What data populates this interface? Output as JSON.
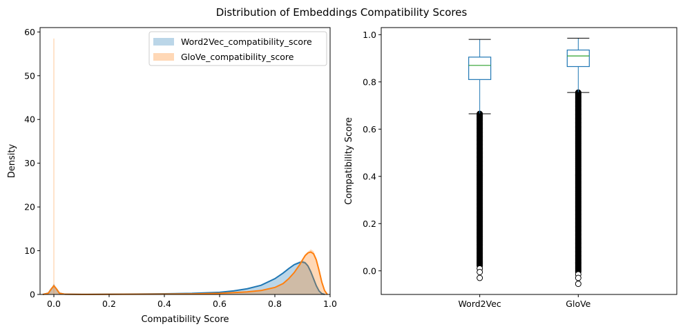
{
  "figure": {
    "title": "Distribution of Embeddings Compatibility Scores"
  },
  "chart_data": [
    {
      "type": "area",
      "subtype": "histogram+kde",
      "xlabel": "Compatibility Score",
      "ylabel": "Density",
      "xlim": [
        -0.05,
        1.0
      ],
      "ylim": [
        0,
        61
      ],
      "xticks": [
        0.0,
        0.2,
        0.4,
        0.6,
        0.8,
        1.0
      ],
      "yticks": [
        0,
        10,
        20,
        30,
        40,
        50,
        60
      ],
      "tick_labels_x": [
        "0.0",
        "0.2",
        "0.4",
        "0.6",
        "0.8",
        "1.0"
      ],
      "tick_labels_y": [
        "0",
        "10",
        "20",
        "30",
        "40",
        "50",
        "60"
      ],
      "legend": {
        "placement": "top-right"
      },
      "series": [
        {
          "name": "Word2Vec_compatibility_score",
          "color": "#1f77b4",
          "x": [
            -0.04,
            -0.02,
            -0.01,
            0.0,
            0.01,
            0.02,
            0.04,
            0.1,
            0.2,
            0.3,
            0.4,
            0.5,
            0.6,
            0.65,
            0.7,
            0.75,
            0.8,
            0.83,
            0.85,
            0.87,
            0.89,
            0.9,
            0.91,
            0.92,
            0.93,
            0.94,
            0.95,
            0.96,
            0.97,
            0.98
          ],
          "kde": [
            0.0,
            0.3,
            1.2,
            2.0,
            1.2,
            0.3,
            0.05,
            0.02,
            0.05,
            0.1,
            0.15,
            0.25,
            0.5,
            0.8,
            1.3,
            2.1,
            3.6,
            4.9,
            5.9,
            6.8,
            7.3,
            7.4,
            7.2,
            6.5,
            5.2,
            3.6,
            2.0,
            0.8,
            0.2,
            0.0
          ],
          "hist": [
            0.0,
            0.0,
            0.0,
            2.5,
            0.0,
            0.0,
            0.0,
            0.0,
            0.0,
            0.1,
            0.15,
            0.25,
            0.5,
            0.8,
            1.3,
            2.2,
            3.7,
            5.0,
            6.0,
            7.0,
            7.6,
            7.8,
            7.5,
            6.8,
            5.4,
            3.6,
            2.0,
            0.7,
            0.1,
            0.0
          ]
        },
        {
          "name": "GloVe_compatibility_score",
          "color": "#ff7f0e",
          "x": [
            -0.04,
            -0.02,
            -0.01,
            0.0,
            0.01,
            0.02,
            0.04,
            0.1,
            0.2,
            0.3,
            0.4,
            0.5,
            0.6,
            0.7,
            0.75,
            0.8,
            0.83,
            0.85,
            0.87,
            0.89,
            0.9,
            0.91,
            0.92,
            0.93,
            0.94,
            0.95,
            0.96,
            0.97,
            0.98,
            0.99
          ],
          "kde": [
            0.0,
            0.3,
            1.2,
            2.0,
            1.2,
            0.3,
            0.05,
            0.02,
            0.03,
            0.05,
            0.08,
            0.12,
            0.25,
            0.6,
            0.9,
            1.6,
            2.5,
            3.6,
            5.0,
            6.8,
            7.9,
            8.9,
            9.5,
            9.7,
            9.3,
            7.9,
            5.5,
            2.8,
            0.9,
            0.0
          ],
          "hist": [
            0.0,
            0.0,
            0.0,
            58.5,
            0.0,
            0.0,
            0.0,
            0.0,
            0.0,
            0.05,
            0.08,
            0.12,
            0.25,
            0.6,
            0.9,
            1.6,
            2.5,
            3.6,
            5.1,
            7.0,
            8.2,
            9.2,
            9.8,
            10.3,
            9.9,
            8.4,
            5.8,
            2.8,
            0.7,
            0.0
          ]
        }
      ]
    },
    {
      "type": "box",
      "xlabel": "",
      "ylabel": "Compatibility Score",
      "ylim": [
        -0.1,
        1.03
      ],
      "yticks": [
        0.0,
        0.2,
        0.4,
        0.6,
        0.8,
        1.0
      ],
      "tick_labels_y": [
        "0.0",
        "0.2",
        "0.4",
        "0.6",
        "0.8",
        "1.0"
      ],
      "categories": [
        "Word2Vec",
        "GloVe"
      ],
      "colors": {
        "box": "#1f77b4",
        "median": "#2ca02c",
        "whisker": "#1f77b4",
        "cap": "#000000",
        "flier": "#000000"
      },
      "boxes": [
        {
          "name": "Word2Vec",
          "whisker_low": 0.665,
          "q1": 0.81,
          "median": 0.87,
          "q3": 0.905,
          "whisker_high": 0.98,
          "outlier_min": -0.03,
          "outlier_max": 0.665
        },
        {
          "name": "GloVe",
          "whisker_low": 0.755,
          "q1": 0.865,
          "median": 0.91,
          "q3": 0.935,
          "whisker_high": 0.985,
          "outlier_min": -0.055,
          "outlier_max": 0.755
        }
      ]
    }
  ]
}
